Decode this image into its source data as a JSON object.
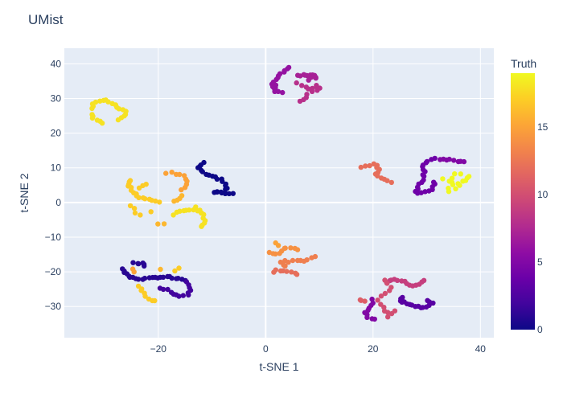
{
  "chart_data": {
    "type": "scatter",
    "title": "UMist",
    "xlabel": "t-SNE 1",
    "ylabel": "t-SNE 2",
    "xlim": [
      -37.5,
      42.5
    ],
    "ylim": [
      -39,
      44.5
    ],
    "xticks": [
      -20,
      0,
      20,
      40
    ],
    "yticks": [
      -30,
      -20,
      -10,
      0,
      10,
      20,
      30,
      40
    ],
    "xtick_labels": [
      "−20",
      "0",
      "20",
      "40"
    ],
    "ytick_labels": [
      "−30",
      "−20",
      "−10",
      "0",
      "10",
      "20",
      "30",
      "40"
    ],
    "grid": true,
    "colorbar": {
      "title": "Truth",
      "min": 0,
      "max": 19,
      "ticks": [
        0,
        5,
        10,
        15
      ],
      "colorscale": "plasma"
    },
    "clusters": [
      {
        "label": 0,
        "path": [
          [
            -11.5,
            11.5
          ],
          [
            -12.5,
            10
          ],
          [
            -11.5,
            8.5
          ],
          [
            -9.5,
            7.5
          ],
          [
            -7.8,
            6
          ],
          [
            -7.2,
            4
          ],
          [
            -7.5,
            3
          ],
          [
            -8.5,
            2.8
          ],
          [
            -9.5,
            3
          ],
          [
            -6.2,
            2.5
          ]
        ],
        "n": 26
      },
      {
        "label": 1,
        "path": [
          [
            -26.5,
            -19
          ],
          [
            -26,
            -20.5
          ],
          [
            -25.5,
            -21.5
          ],
          [
            -24,
            -22
          ],
          [
            -22,
            -22
          ],
          [
            -20,
            -21.5
          ],
          [
            -18,
            -21.5
          ],
          [
            -16.5,
            -22
          ],
          [
            -15,
            -22.5
          ]
        ],
        "n": 24
      },
      {
        "label": 1,
        "path": [
          [
            -24.5,
            -17.5
          ],
          [
            -23,
            -17.5
          ],
          [
            -22.5,
            -18.5
          ]
        ],
        "n": 6
      },
      {
        "label": 2,
        "path": [
          [
            -19.5,
            -24.5
          ],
          [
            -18.5,
            -25
          ],
          [
            -17.5,
            -26
          ],
          [
            -16,
            -27
          ],
          [
            -14.5,
            -26.5
          ],
          [
            -14,
            -25
          ],
          [
            -14.5,
            -23
          ]
        ],
        "n": 14
      },
      {
        "label": 3,
        "path": [
          [
            25.5,
            -27.5
          ],
          [
            25,
            -28.5
          ],
          [
            26.5,
            -29
          ],
          [
            28,
            -30
          ],
          [
            29.5,
            -30.5
          ],
          [
            30.5,
            -29.5
          ],
          [
            31,
            -29
          ],
          [
            30,
            -28.5
          ]
        ],
        "n": 18
      },
      {
        "label": 4,
        "path": [
          [
            31.5,
            12.5
          ],
          [
            30,
            12
          ],
          [
            29,
            10.5
          ],
          [
            29.5,
            9
          ],
          [
            29.5,
            7
          ],
          [
            28.5,
            5
          ],
          [
            28,
            3.5
          ],
          [
            28.5,
            2.5
          ],
          [
            30,
            3
          ],
          [
            31,
            4
          ],
          [
            31.5,
            6
          ]
        ],
        "n": 24
      },
      {
        "label": 5,
        "path": [
          [
            32.5,
            12.5
          ],
          [
            34,
            12.5
          ],
          [
            35.5,
            12
          ],
          [
            37,
            12
          ]
        ],
        "n": 8
      },
      {
        "label": 5,
        "path": [
          [
            20,
            -28
          ],
          [
            19.5,
            -30
          ],
          [
            18.5,
            -32
          ],
          [
            19,
            -33.5
          ],
          [
            20.5,
            -33.5
          ]
        ],
        "n": 10
      },
      {
        "label": 6,
        "path": [
          [
            2,
            33
          ],
          [
            1.5,
            35
          ],
          [
            2.5,
            36.5
          ],
          [
            3.5,
            38
          ],
          [
            4.5,
            39
          ]
        ],
        "n": 12
      },
      {
        "label": 6,
        "path": [
          [
            1,
            34
          ],
          [
            2,
            32
          ],
          [
            3,
            31.5
          ]
        ],
        "n": 6
      },
      {
        "label": 7,
        "path": [
          [
            6,
            36.5
          ],
          [
            7,
            37
          ],
          [
            8.5,
            36.5
          ],
          [
            9.5,
            36
          ],
          [
            9,
            37
          ],
          [
            8,
            35.5
          ]
        ],
        "n": 14
      },
      {
        "label": 8,
        "path": [
          [
            6,
            34.5
          ],
          [
            7.5,
            33.5
          ],
          [
            8.5,
            32.5
          ],
          [
            9.5,
            34
          ],
          [
            10,
            32.5
          ],
          [
            8,
            31.5
          ],
          [
            7.5,
            30.5
          ],
          [
            6.5,
            29
          ]
        ],
        "n": 14
      },
      {
        "label": 9,
        "path": [
          [
            22.5,
            -23
          ],
          [
            24,
            -22
          ],
          [
            26,
            -23
          ],
          [
            27.5,
            -24
          ],
          [
            29,
            -23.5
          ],
          [
            29.5,
            -22.5
          ]
        ],
        "n": 14
      },
      {
        "label": 10,
        "path": [
          [
            22,
            -22.5
          ],
          [
            23.5,
            -24.5
          ],
          [
            22,
            -26.5
          ],
          [
            21,
            -28
          ],
          [
            22.5,
            -32
          ],
          [
            24,
            -31
          ],
          [
            23,
            -33
          ]
        ],
        "n": 14
      },
      {
        "label": 11,
        "path": [
          [
            17.5,
            -28
          ],
          [
            18.5,
            -28.5
          ]
        ],
        "n": 3
      },
      {
        "label": 12,
        "path": [
          [
            18,
            10
          ],
          [
            19.5,
            11
          ],
          [
            20.5,
            11
          ],
          [
            21,
            9.5
          ],
          [
            20.5,
            8
          ],
          [
            21.5,
            7
          ],
          [
            22.5,
            6.5
          ],
          [
            23.5,
            6
          ]
        ],
        "n": 14
      },
      {
        "label": 12,
        "path": [
          [
            1.5,
            -20
          ],
          [
            2.5,
            -19.5
          ],
          [
            3.5,
            -20
          ],
          [
            5,
            -20
          ],
          [
            6,
            -20.5
          ]
        ],
        "n": 8
      },
      {
        "label": 13,
        "path": [
          [
            3.5,
            -18.5
          ],
          [
            3,
            -17
          ],
          [
            4.5,
            -17
          ],
          [
            6,
            -16.5
          ],
          [
            7.5,
            -17
          ],
          [
            8.5,
            -16
          ],
          [
            9,
            -15.5
          ]
        ],
        "n": 12
      },
      {
        "label": 14,
        "path": [
          [
            0.5,
            -14.5
          ],
          [
            1.5,
            -14.5
          ],
          [
            2.5,
            -15
          ],
          [
            3.5,
            -13
          ],
          [
            5,
            -13
          ],
          [
            6,
            -13.5
          ]
        ],
        "n": 10
      },
      {
        "label": 15,
        "path": [
          [
            2,
            -12
          ]
        ],
        "n": 2
      },
      {
        "label": 15,
        "path": [
          [
            -18.5,
            8.5
          ],
          [
            -17.5,
            8.5
          ],
          [
            -16,
            8
          ],
          [
            -15,
            7.5
          ],
          [
            -14.8,
            6
          ],
          [
            -15,
            4.5
          ],
          [
            -15.5,
            3.5
          ]
        ],
        "n": 10
      },
      {
        "label": 15,
        "path": [
          [
            -25,
            -19
          ],
          [
            -24.5,
            -20
          ]
        ],
        "n": 2
      },
      {
        "label": 16,
        "path": [
          [
            -19.5,
            -19
          ]
        ],
        "n": 1
      },
      {
        "label": 16,
        "path": [
          [
            -17,
            0.5
          ],
          [
            -16,
            1
          ],
          [
            -15.5,
            2
          ]
        ],
        "n": 4
      },
      {
        "label": 16,
        "path": [
          [
            -20,
            -6
          ],
          [
            -19,
            -6
          ]
        ],
        "n": 2
      },
      {
        "label": 17,
        "path": [
          [
            -25,
            6.5
          ],
          [
            -25.5,
            5
          ],
          [
            -25,
            3.5
          ],
          [
            -24,
            2
          ],
          [
            -22.5,
            1
          ],
          [
            -21,
            0.5
          ],
          [
            -20,
            0
          ]
        ],
        "n": 16
      },
      {
        "label": 17,
        "path": [
          [
            -23.5,
            4
          ],
          [
            -22.5,
            5.5
          ]
        ],
        "n": 3
      },
      {
        "label": 17,
        "path": [
          [
            -25,
            -1
          ],
          [
            -24.5,
            -2.5
          ],
          [
            -23.5,
            -3.5
          ]
        ],
        "n": 4
      },
      {
        "label": 17,
        "path": [
          [
            -21.5,
            -3
          ]
        ],
        "n": 1
      },
      {
        "label": 17,
        "path": [
          [
            -23.5,
            -24
          ],
          [
            -23,
            -25.5
          ],
          [
            -22.5,
            -27
          ],
          [
            -21.5,
            -28
          ],
          [
            -20.5,
            -28.5
          ]
        ],
        "n": 8
      },
      {
        "label": 17,
        "path": [
          [
            -17,
            -19.5
          ],
          [
            -16,
            -19
          ]
        ],
        "n": 2
      },
      {
        "label": 18,
        "path": [
          [
            -17,
            -3.5
          ],
          [
            -16,
            -2.5
          ],
          [
            -14.5,
            -2
          ],
          [
            -13,
            -2
          ],
          [
            -12,
            -2.5
          ],
          [
            -11.5,
            -4
          ],
          [
            -11.5,
            -5.5
          ],
          [
            -12,
            -7
          ]
        ],
        "n": 16
      },
      {
        "label": 18,
        "path": [
          [
            -13,
            -1.5
          ],
          [
            -12,
            -3
          ]
        ],
        "n": 3
      },
      {
        "label": 18,
        "path": [
          [
            -32.5,
            27
          ],
          [
            -32,
            28.5
          ],
          [
            -31,
            29
          ],
          [
            -29.5,
            29.5
          ],
          [
            -28.5,
            28.5
          ],
          [
            -27,
            27
          ],
          [
            -26,
            26
          ],
          [
            -26.5,
            25
          ],
          [
            -27.5,
            24
          ]
        ],
        "n": 18
      },
      {
        "label": 18,
        "path": [
          [
            -32.5,
            25.5
          ],
          [
            -32,
            24
          ],
          [
            -31,
            23.5
          ],
          [
            -30.5,
            23
          ]
        ],
        "n": 6
      },
      {
        "label": 19,
        "path": [
          [
            33,
            7
          ],
          [
            34.5,
            6
          ],
          [
            35,
            4.5
          ],
          [
            36,
            5.5
          ],
          [
            37,
            6
          ],
          [
            37.5,
            7
          ],
          [
            36.5,
            8.5
          ],
          [
            35,
            8.5
          ],
          [
            34,
            3
          ],
          [
            35,
            3.5
          ],
          [
            38,
            7.5
          ]
        ],
        "n": 16
      }
    ]
  }
}
